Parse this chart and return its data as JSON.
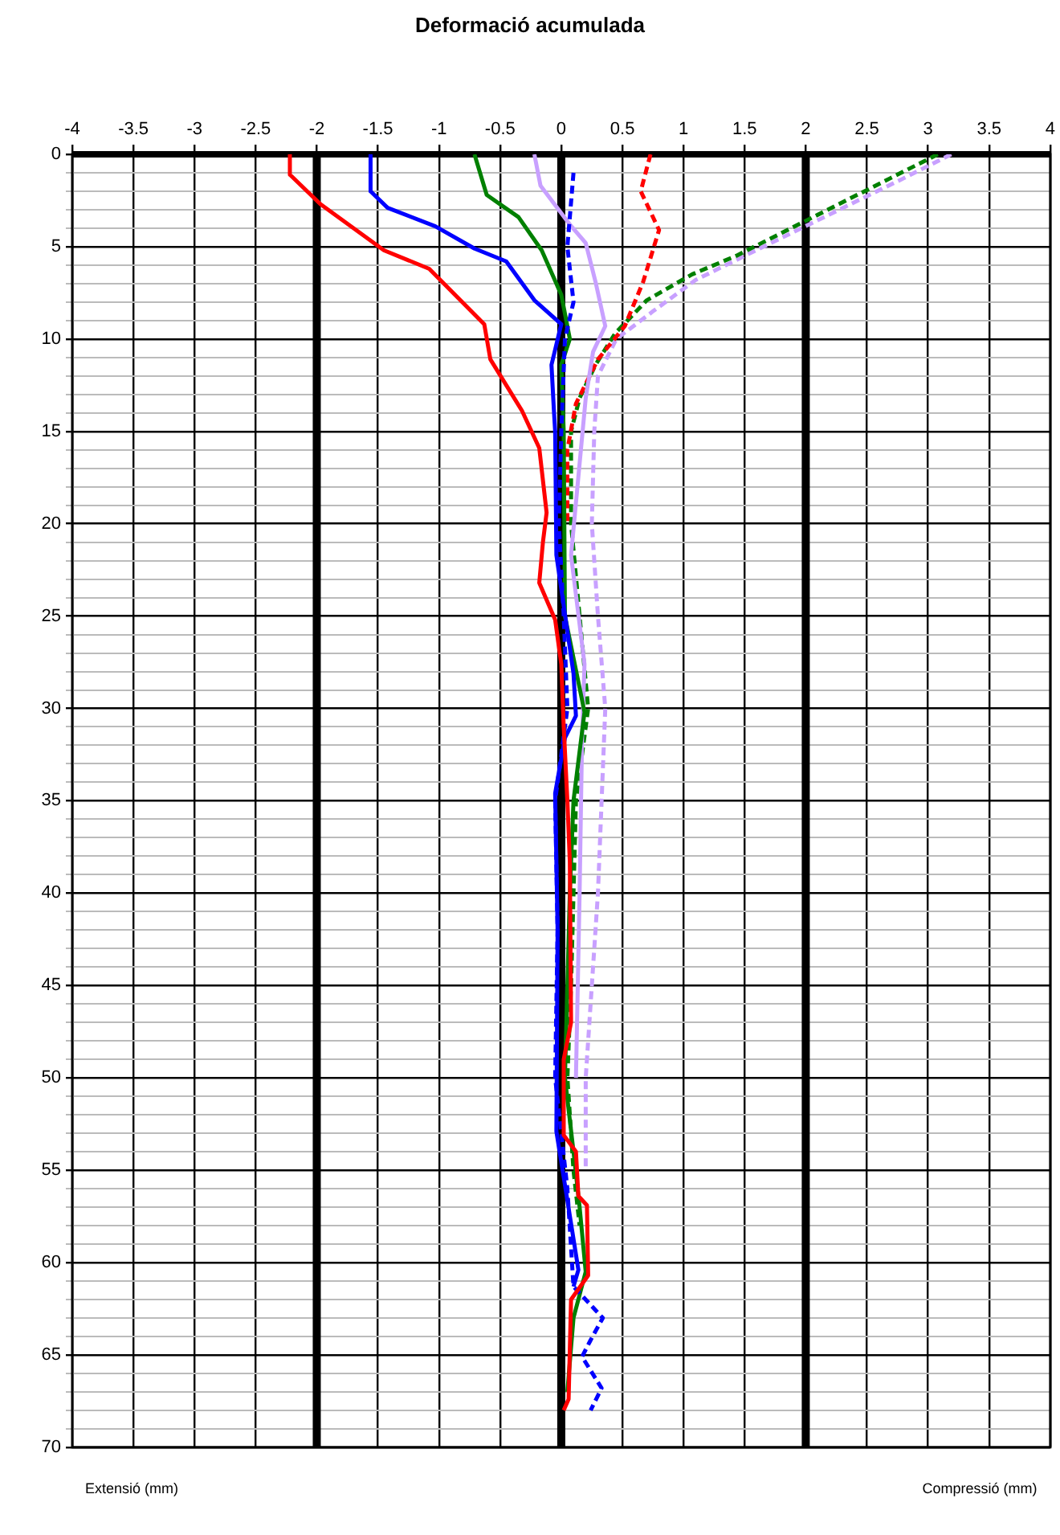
{
  "chart_data": {
    "type": "line",
    "title": "Deformació acumulada",
    "xlim": [
      -4,
      4
    ],
    "xticks": [
      -4,
      -3.5,
      -3,
      -2.5,
      -2,
      -1.5,
      -1,
      -0.5,
      0,
      0.5,
      1,
      1.5,
      2,
      2.5,
      3,
      3.5,
      4
    ],
    "ylim": [
      70,
      0
    ],
    "yticks": [
      0,
      {
        "value": 1,
        "label": null
      },
      {
        "value": 2,
        "label": null
      },
      {
        "value": 3,
        "label": null
      },
      {
        "value": 4,
        "label": null
      },
      5,
      {
        "value": 6,
        "label": null
      },
      {
        "value": 7,
        "label": null
      },
      {
        "value": 8,
        "label": null
      },
      {
        "value": 9,
        "label": null
      },
      10,
      {
        "value": 11,
        "label": null
      },
      {
        "value": 12,
        "label": null
      },
      {
        "value": 13,
        "label": null
      },
      {
        "value": 14,
        "label": null
      },
      15,
      {
        "value": 16,
        "label": null
      },
      {
        "value": 17,
        "label": null
      },
      {
        "value": 18,
        "label": null
      },
      {
        "value": 19,
        "label": null
      },
      20,
      {
        "value": 21,
        "label": null
      },
      {
        "value": 22,
        "label": null
      },
      {
        "value": 23,
        "label": null
      },
      {
        "value": 24,
        "label": null
      },
      25,
      {
        "value": 26,
        "label": null
      },
      {
        "value": 27,
        "label": null
      },
      {
        "value": 28,
        "label": null
      },
      {
        "value": 29,
        "label": null
      },
      30,
      {
        "value": 31,
        "label": null
      },
      {
        "value": 32,
        "label": null
      },
      {
        "value": 33,
        "label": null
      },
      {
        "value": 34,
        "label": null
      },
      35,
      {
        "value": 36,
        "label": null
      },
      {
        "value": 37,
        "label": null
      },
      {
        "value": 38,
        "label": null
      },
      {
        "value": 39,
        "label": null
      },
      40,
      {
        "value": 41,
        "label": null
      },
      {
        "value": 42,
        "label": null
      },
      {
        "value": 43,
        "label": null
      },
      {
        "value": 44,
        "label": null
      },
      45,
      {
        "value": 46,
        "label": null
      },
      {
        "value": 47,
        "label": null
      },
      {
        "value": 48,
        "label": null
      },
      {
        "value": 49,
        "label": null
      },
      50,
      {
        "value": 51,
        "label": null
      },
      {
        "value": 52,
        "label": null
      },
      {
        "value": 53,
        "label": null
      },
      {
        "value": 54,
        "label": null
      },
      55,
      {
        "value": 56,
        "label": null
      },
      {
        "value": 57,
        "label": null
      },
      {
        "value": 58,
        "label": null
      },
      {
        "value": 59,
        "label": null
      },
      60,
      {
        "value": 61,
        "label": null
      },
      {
        "value": 62,
        "label": null
      },
      {
        "value": 63,
        "label": null
      },
      {
        "value": 64,
        "label": null
      },
      65,
      {
        "value": 66,
        "label": null
      },
      {
        "value": 67,
        "label": null
      },
      {
        "value": 68,
        "label": null
      },
      {
        "value": 69,
        "label": null
      },
      70
    ],
    "grid": true,
    "marker": "none",
    "ref_lines": [
      {
        "axis": "x",
        "value": -2,
        "color": "#000000"
      },
      {
        "axis": "x",
        "value": 0,
        "color": "#000000"
      },
      {
        "axis": "x",
        "value": 2,
        "color": "#000000"
      }
    ],
    "annotations": [
      "Extensió (mm)",
      "Compressió (mm)"
    ],
    "series": [
      {
        "color": "#ff0000",
        "line_style": "solid",
        "x": [
          -2.22,
          -2.22,
          -1.97,
          -1.45,
          -1.08,
          -0.63,
          -0.58,
          -0.32,
          -0.18,
          -0.12,
          -0.15,
          -0.18,
          -0.05,
          0,
          0.02,
          0.05,
          0.07,
          0.08,
          0.02,
          0.02,
          0.12,
          0.14,
          0.21,
          0.22,
          0.08,
          0.06,
          0.02
        ],
        "values": [
          0,
          1.1,
          2.7,
          5.2,
          6.2,
          9.2,
          11.1,
          13.9,
          15.9,
          19.4,
          21,
          23.2,
          25.2,
          27.6,
          31,
          35,
          38.3,
          47,
          49,
          53.1,
          54,
          56.4,
          56.9,
          60.7,
          62,
          67.4,
          68
        ]
      },
      {
        "color": "#0000ff",
        "line_style": "solid",
        "x": [
          -1.56,
          -1.56,
          -1.42,
          -1.03,
          -0.71,
          -0.45,
          -0.22,
          0,
          -0.08,
          -0.06,
          -0.05,
          -0.04,
          0.1,
          0.12,
          0.03,
          -0.05,
          -0.03,
          -0.04,
          0.03,
          0.14,
          0.1
        ],
        "values": [
          0,
          2,
          2.9,
          3.9,
          5.1,
          5.8,
          7.9,
          9.2,
          11.4,
          13.9,
          15,
          21.7,
          28.1,
          30.4,
          31.6,
          34.6,
          42,
          52.9,
          55.8,
          60.4,
          61.3
        ]
      },
      {
        "color": "#0000ff",
        "line_style": "dashed",
        "x": [
          0.1,
          0.05,
          0.1,
          0.03,
          0,
          -0.02,
          0.02,
          0.05,
          -0.05,
          -0.03,
          -0.05,
          0.05,
          0.1,
          0.34,
          0.24,
          0.17,
          0.33,
          0.24
        ],
        "values": [
          1,
          5,
          8,
          10,
          15,
          20,
          25,
          30,
          35,
          42,
          50,
          56,
          61.3,
          63,
          64.2,
          65.1,
          66.8,
          68
        ]
      },
      {
        "color": "#008000",
        "line_style": "solid",
        "x": [
          -0.71,
          -0.61,
          -0.35,
          -0.16,
          0,
          0.07,
          0,
          0.02,
          0.03,
          0.19,
          0.1,
          0.07,
          0.05,
          0.03,
          0.1,
          0.15,
          0.2,
          0.1,
          0.05
        ],
        "values": [
          0,
          2.2,
          3.4,
          5.2,
          7.6,
          10,
          11.4,
          15,
          25,
          30.2,
          35,
          40,
          45,
          50,
          54,
          57,
          60.5,
          63,
          67
        ]
      },
      {
        "color": "#c8a0ff",
        "line_style": "solid",
        "x": [
          -0.22,
          -0.17,
          0.07,
          0.2,
          0.28,
          0.36,
          0.26,
          0.2,
          0.08,
          0.19,
          0.17,
          0.15,
          0.12
        ],
        "values": [
          0,
          1.7,
          3.8,
          4.8,
          6.9,
          9.3,
          10.7,
          13.2,
          21.7,
          27.6,
          31.6,
          40,
          50
        ]
      },
      {
        "color": "#ff0000",
        "line_style": "dashed",
        "x": [
          0.73,
          0.65,
          0.8,
          0.67,
          0.52,
          0.3,
          0.12,
          0.05,
          0.05
        ],
        "values": [
          0,
          2,
          4.1,
          6.9,
          9.3,
          11.1,
          13.5,
          16,
          20
        ]
      },
      {
        "color": "#008000",
        "line_style": "dashed",
        "x": [
          3.08,
          2.69,
          2.06,
          1.43,
          1.07,
          0.7,
          0.44,
          0.28,
          0.15,
          0.08,
          0.08,
          0.15,
          0.22,
          0.12,
          0.1,
          0.08,
          0.05,
          0.1,
          0.15
        ],
        "values": [
          0,
          1.3,
          3.4,
          5.5,
          6.5,
          7.9,
          9.7,
          11.4,
          13.2,
          15,
          20,
          25,
          30,
          35,
          40,
          45,
          50,
          55,
          58
        ]
      },
      {
        "color": "#c8a0ff",
        "line_style": "dashed",
        "x": [
          3.19,
          2.8,
          2.15,
          1.5,
          1.1,
          0.75,
          0.45,
          0.3,
          0.27,
          0.25,
          0.3,
          0.36,
          0.33,
          0.3,
          0.25,
          0.2,
          0.2
        ],
        "values": [
          0,
          1.3,
          3.4,
          5.5,
          6.8,
          8.5,
          10,
          12,
          15,
          20,
          25,
          30,
          35,
          40,
          45,
          50,
          55
        ]
      }
    ]
  }
}
